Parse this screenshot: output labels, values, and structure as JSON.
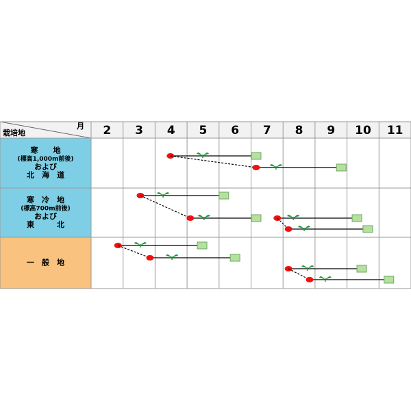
{
  "header": {
    "region": "栽培地",
    "month": "月"
  },
  "months": [
    2,
    3,
    4,
    5,
    6,
    7,
    8,
    9,
    10,
    11
  ],
  "regions": [
    {
      "label": [
        "寒　　地",
        "(標高1,000m前後)",
        "および",
        "北　海　道"
      ],
      "color": "#7ecfe6",
      "schedules": [
        {
          "sow": 4.48,
          "plant": 5.49,
          "harvest": 7.16
        },
        {
          "sow": 7.16,
          "plant": 7.78,
          "harvest": 9.82,
          "dashed_link": true
        }
      ]
    },
    {
      "label": [
        "寒　冷　地",
        "(標高700m前後)",
        "および",
        "東　　　北"
      ],
      "color": "#7ecfe6",
      "schedules": [
        {
          "sow": 3.54,
          "plant": 4.25,
          "harvest": 6.15
        },
        {
          "sow": 5.1,
          "plant": 5.53,
          "harvest": 7.16,
          "dashed_link": true
        },
        {
          "sow": 7.82,
          "plant": 8.32,
          "harvest": 10.31
        },
        {
          "sow": 8.17,
          "plant": 8.66,
          "harvest": 10.65,
          "dashed_link": true
        }
      ]
    },
    {
      "label": [
        "一　般　地"
      ],
      "color": "#f9c27e",
      "schedules": [
        {
          "sow": 2.84,
          "plant": 3.54,
          "harvest": 5.47
        },
        {
          "sow": 3.84,
          "plant": 4.53,
          "harvest": 6.5,
          "dashed_link": true
        },
        {
          "sow": 8.17,
          "plant": 8.77,
          "harvest": 10.46
        },
        {
          "sow": 8.83,
          "plant": 9.32,
          "harvest": 11.31,
          "dashed_link": true
        }
      ]
    }
  ]
}
